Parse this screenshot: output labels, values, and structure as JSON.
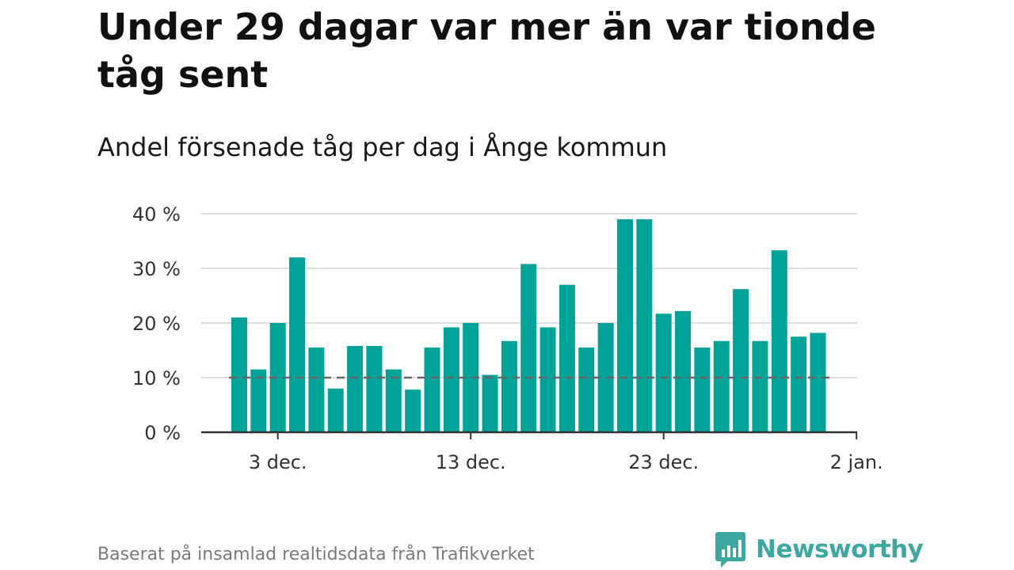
{
  "title": "Under 29 dagar var mer än var tionde tåg sent",
  "subtitle": "Andel försenade tåg per dag i Ånge kommun",
  "source": "Baserat på insamlad realtidsdata från Trafikverket",
  "brand": {
    "name": "Newsworthy",
    "icon": "newsworthy-logo-icon"
  },
  "colors": {
    "bar": "#00a398",
    "reference": "#666666",
    "grid": "#dddddd",
    "axis": "#333333"
  },
  "chart_data": {
    "type": "bar",
    "x": [
      "1 dec.",
      "2 dec.",
      "3 dec.",
      "4 dec.",
      "5 dec.",
      "6 dec.",
      "7 dec.",
      "8 dec.",
      "9 dec.",
      "10 dec.",
      "11 dec.",
      "12 dec.",
      "13 dec.",
      "14 dec.",
      "15 dec.",
      "16 dec.",
      "17 dec.",
      "18 dec.",
      "19 dec.",
      "20 dec.",
      "21 dec.",
      "22 dec.",
      "23 dec.",
      "24 dec.",
      "25 dec.",
      "26 dec.",
      "27 dec.",
      "28 dec.",
      "29 dec.",
      "30 dec.",
      "31 dec."
    ],
    "values": [
      21,
      11.5,
      20,
      32,
      15.5,
      8,
      15.8,
      15.8,
      11.5,
      7.8,
      15.5,
      19.2,
      20,
      10.5,
      16.7,
      30.8,
      19.2,
      27,
      15.5,
      20,
      39,
      39,
      21.7,
      22.2,
      15.5,
      16.7,
      26.2,
      16.7,
      33.3,
      17.5,
      18.2
    ],
    "reference_line": 10,
    "ylim": [
      0,
      40
    ],
    "yticks": [
      0,
      10,
      20,
      30,
      40
    ],
    "ytick_labels": [
      "0 %",
      "10 %",
      "20 %",
      "30 %",
      "40 %"
    ],
    "xticks": [
      "3 dec.",
      "13 dec.",
      "23 dec.",
      "2 jan."
    ],
    "grid": true
  }
}
